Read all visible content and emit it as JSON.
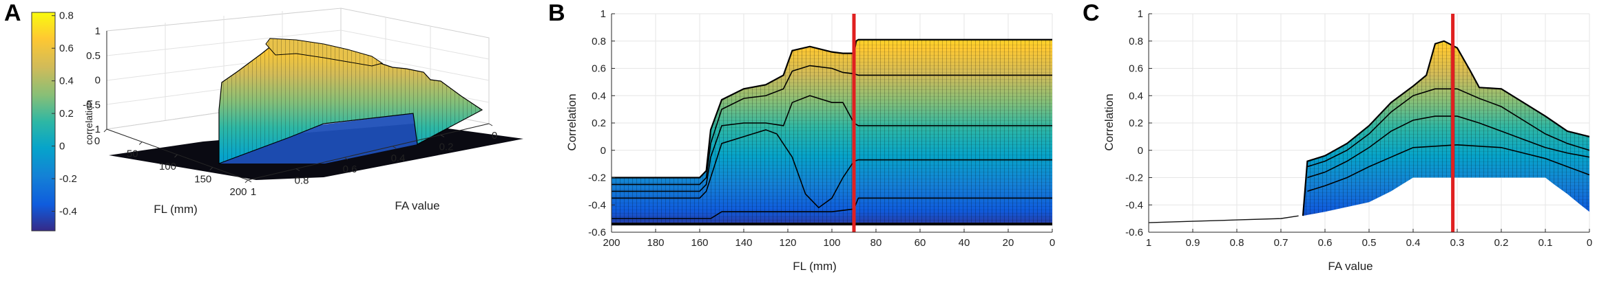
{
  "panels": {
    "a_letter": "A",
    "b_letter": "B",
    "c_letter": "C"
  },
  "colorbar": {
    "label": "correlation",
    "ticks": [
      "0.8",
      "0.6",
      "0.4",
      "0.2",
      "0",
      "-0.2",
      "-0.4"
    ],
    "range": [
      -0.52,
      0.82
    ]
  },
  "chart_data": [
    {
      "type": "surface3d",
      "panel": "A",
      "xlabel": "FL (mm)",
      "ylabel": "FA value",
      "zlabel": "",
      "x_ticks": [
        "0",
        "50",
        "100",
        "150",
        "200"
      ],
      "y_ticks": [
        "1",
        "0.8",
        "0.6",
        "0.4",
        "0.2",
        "0"
      ],
      "z_ticks": [
        "1",
        "0.5",
        "0",
        "-0.5",
        "-1"
      ],
      "xlim": [
        0,
        200
      ],
      "ylim": [
        0,
        1
      ],
      "zlim": [
        -1,
        1
      ],
      "colormap": "parula"
    },
    {
      "type": "line",
      "panel": "B",
      "xlabel": "FL (mm)",
      "ylabel": "Correlation",
      "xlim": [
        200,
        0
      ],
      "ylim": [
        -0.6,
        1
      ],
      "x_ticks": [
        "200",
        "180",
        "160",
        "140",
        "120",
        "100",
        "80",
        "60",
        "40",
        "20",
        "0"
      ],
      "y_ticks": [
        "1",
        "0.8",
        "0.6",
        "0.4",
        "0.2",
        "0",
        "-0.2",
        "-0.4",
        "-0.6"
      ],
      "marker_x": 90,
      "marker_color": "#e02020",
      "envelope": {
        "upper": {
          "x": [
            200,
            160,
            157,
            155,
            150,
            140,
            130,
            122,
            118,
            110,
            100,
            95,
            90,
            89,
            88,
            80,
            60,
            40,
            20,
            0
          ],
          "y": [
            -0.2,
            -0.2,
            -0.15,
            0.15,
            0.37,
            0.45,
            0.48,
            0.55,
            0.73,
            0.76,
            0.72,
            0.71,
            0.71,
            0.8,
            0.81,
            0.81,
            0.81,
            0.81,
            0.81,
            0.81
          ]
        },
        "lower": {
          "x": [
            200,
            0
          ],
          "y": [
            -0.53,
            -0.53
          ]
        }
      },
      "series": [
        {
          "x": [
            200,
            160,
            157,
            155,
            150,
            140,
            130,
            122,
            118,
            110,
            100,
            95,
            90,
            89,
            88,
            80,
            60,
            40,
            20,
            0
          ],
          "y": [
            -0.2,
            -0.2,
            -0.15,
            0.15,
            0.37,
            0.45,
            0.48,
            0.55,
            0.73,
            0.76,
            0.72,
            0.71,
            0.71,
            0.8,
            0.81,
            0.81,
            0.81,
            0.81,
            0.81,
            0.81
          ]
        },
        {
          "x": [
            200,
            160,
            157,
            155,
            150,
            140,
            130,
            122,
            118,
            110,
            100,
            95,
            90,
            88,
            80,
            60,
            40,
            20,
            0
          ],
          "y": [
            -0.25,
            -0.25,
            -0.2,
            0.05,
            0.3,
            0.38,
            0.4,
            0.45,
            0.58,
            0.62,
            0.6,
            0.57,
            0.56,
            0.55,
            0.55,
            0.55,
            0.55,
            0.55,
            0.55
          ]
        },
        {
          "x": [
            200,
            160,
            157,
            155,
            150,
            140,
            130,
            122,
            118,
            110,
            100,
            95,
            90,
            88,
            80,
            60,
            40,
            20,
            0
          ],
          "y": [
            -0.3,
            -0.3,
            -0.25,
            -0.05,
            0.18,
            0.2,
            0.2,
            0.18,
            0.35,
            0.4,
            0.35,
            0.35,
            0.2,
            0.18,
            0.18,
            0.18,
            0.18,
            0.18,
            0.18
          ]
        },
        {
          "x": [
            200,
            160,
            157,
            155,
            150,
            140,
            130,
            125,
            118,
            112,
            106,
            100,
            95,
            90,
            88,
            80,
            60,
            40,
            20,
            0
          ],
          "y": [
            -0.35,
            -0.35,
            -0.3,
            -0.2,
            0.05,
            0.1,
            0.15,
            0.12,
            -0.05,
            -0.32,
            -0.42,
            -0.35,
            -0.2,
            -0.08,
            -0.07,
            -0.07,
            -0.07,
            -0.07,
            -0.07,
            -0.07
          ]
        },
        {
          "x": [
            200,
            155,
            150,
            100,
            90,
            88,
            0
          ],
          "y": [
            -0.5,
            -0.5,
            -0.45,
            -0.45,
            -0.43,
            -0.35,
            -0.35
          ]
        }
      ]
    },
    {
      "type": "line",
      "panel": "C",
      "xlabel": "FA value",
      "ylabel": "Correlation",
      "xlim": [
        1,
        0
      ],
      "ylim": [
        -0.6,
        1
      ],
      "x_ticks": [
        "1",
        "0.9",
        "0.8",
        "0.7",
        "0.6",
        "0.5",
        "0.4",
        "0.3",
        "0.2",
        "0.1",
        "0"
      ],
      "y_ticks": [
        "1",
        "0.8",
        "0.6",
        "0.4",
        "0.2",
        "0",
        "-0.2",
        "-0.4",
        "-0.6"
      ],
      "marker_x": 0.31,
      "marker_color": "#e02020",
      "tail": {
        "x": [
          1,
          0.9,
          0.8,
          0.7,
          0.66
        ],
        "y": [
          -0.53,
          -0.52,
          -0.51,
          -0.5,
          -0.48
        ]
      },
      "envelope": {
        "upper": {
          "x": [
            0.65,
            0.64,
            0.6,
            0.55,
            0.5,
            0.45,
            0.4,
            0.37,
            0.35,
            0.33,
            0.3,
            0.27,
            0.25,
            0.2,
            0.15,
            0.1,
            0.05,
            0
          ],
          "y": [
            -0.48,
            -0.08,
            -0.04,
            0.05,
            0.18,
            0.35,
            0.47,
            0.55,
            0.78,
            0.8,
            0.75,
            0.58,
            0.46,
            0.45,
            0.35,
            0.25,
            0.14,
            0.1
          ]
        },
        "lower": {
          "x": [
            0.65,
            0.6,
            0.5,
            0.45,
            0.4,
            0.3,
            0.2,
            0.1,
            0.08,
            0.05,
            0.02,
            0
          ],
          "y": [
            -0.48,
            -0.45,
            -0.38,
            -0.3,
            -0.2,
            -0.2,
            -0.2,
            -0.2,
            -0.25,
            -0.32,
            -0.4,
            -0.45
          ]
        }
      },
      "series": [
        {
          "x": [
            0.65,
            0.64,
            0.6,
            0.55,
            0.5,
            0.45,
            0.4,
            0.37,
            0.35,
            0.33,
            0.3,
            0.27,
            0.25,
            0.2,
            0.15,
            0.1,
            0.05,
            0
          ],
          "y": [
            -0.48,
            -0.08,
            -0.04,
            0.05,
            0.18,
            0.35,
            0.47,
            0.55,
            0.78,
            0.8,
            0.75,
            0.58,
            0.46,
            0.45,
            0.35,
            0.25,
            0.14,
            0.1
          ]
        },
        {
          "x": [
            0.64,
            0.6,
            0.55,
            0.5,
            0.45,
            0.4,
            0.35,
            0.3,
            0.25,
            0.2,
            0.15,
            0.1,
            0.05,
            0
          ],
          "y": [
            -0.12,
            -0.08,
            0.0,
            0.12,
            0.28,
            0.4,
            0.45,
            0.45,
            0.38,
            0.32,
            0.22,
            0.12,
            0.05,
            0.0
          ]
        },
        {
          "x": [
            0.64,
            0.6,
            0.55,
            0.5,
            0.45,
            0.4,
            0.35,
            0.3,
            0.25,
            0.2,
            0.15,
            0.1,
            0.05,
            0
          ],
          "y": [
            -0.2,
            -0.16,
            -0.08,
            0.02,
            0.14,
            0.22,
            0.25,
            0.25,
            0.2,
            0.14,
            0.08,
            0.02,
            -0.02,
            -0.05
          ]
        },
        {
          "x": [
            0.64,
            0.6,
            0.55,
            0.5,
            0.45,
            0.4,
            0.3,
            0.2,
            0.15,
            0.1,
            0.05,
            0
          ],
          "y": [
            -0.3,
            -0.26,
            -0.2,
            -0.12,
            -0.05,
            0.02,
            0.04,
            0.02,
            -0.02,
            -0.06,
            -0.12,
            -0.18
          ]
        }
      ]
    }
  ]
}
